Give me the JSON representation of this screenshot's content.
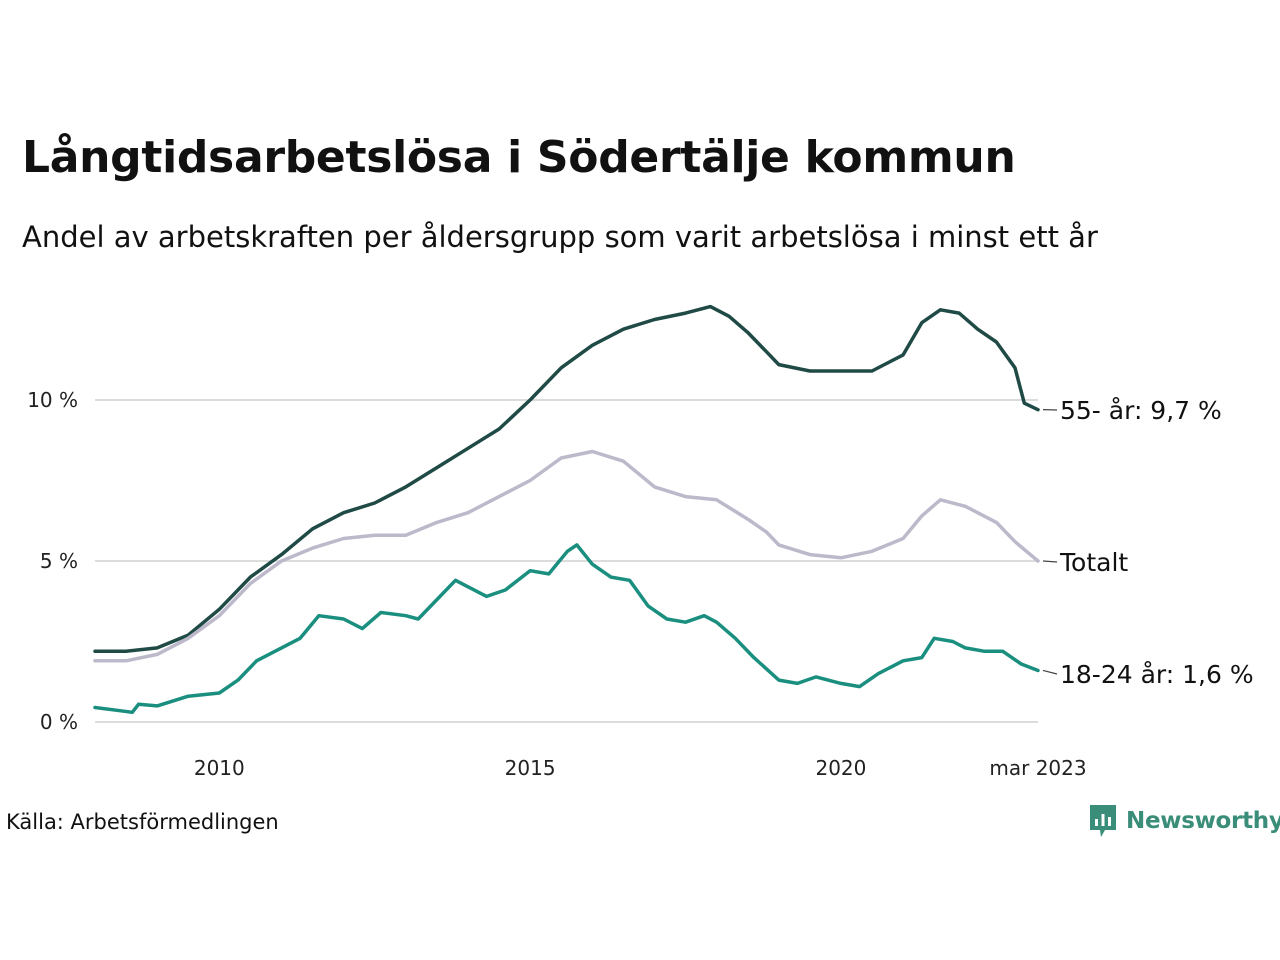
{
  "title": "Långtidsarbetslösa i Södertälje kommun",
  "subtitle": "Andel av arbetskraften per åldersgrupp som varit arbetslösa i minst ett år",
  "source": "Källa: Arbetsförmedlingen",
  "brand": {
    "name": "Newsworthy",
    "icon": "newsworthy-chart-bubble-icon",
    "color": "#3a8d78"
  },
  "chart_data": {
    "type": "line",
    "x_start": "2008-01",
    "x_end": "2023-03",
    "x_ticks": [
      {
        "x": 2010.0,
        "label": "2010"
      },
      {
        "x": 2015.0,
        "label": "2015"
      },
      {
        "x": 2020.0,
        "label": "2020"
      },
      {
        "x": 2023.17,
        "label": "mar 2023"
      }
    ],
    "y_ticks": [
      {
        "y": 0,
        "label": "0 %"
      },
      {
        "y": 5,
        "label": "5 %"
      },
      {
        "y": 10,
        "label": "10 %"
      }
    ],
    "ylim": [
      0,
      13
    ],
    "grid": "horizontal",
    "series": [
      {
        "name": "55-",
        "end_label": "55- år: 9,7 %",
        "color": "#1f4a45",
        "values": [
          [
            2008.0,
            2.2
          ],
          [
            2008.5,
            2.2
          ],
          [
            2009.0,
            2.3
          ],
          [
            2009.5,
            2.7
          ],
          [
            2010.0,
            3.5
          ],
          [
            2010.5,
            4.5
          ],
          [
            2011.0,
            5.2
          ],
          [
            2011.5,
            6.0
          ],
          [
            2012.0,
            6.5
          ],
          [
            2012.5,
            6.8
          ],
          [
            2013.0,
            7.3
          ],
          [
            2013.5,
            7.9
          ],
          [
            2014.0,
            8.5
          ],
          [
            2014.5,
            9.1
          ],
          [
            2015.0,
            10.0
          ],
          [
            2015.5,
            11.0
          ],
          [
            2016.0,
            11.7
          ],
          [
            2016.5,
            12.2
          ],
          [
            2017.0,
            12.5
          ],
          [
            2017.5,
            12.7
          ],
          [
            2017.9,
            12.9
          ],
          [
            2018.2,
            12.6
          ],
          [
            2018.5,
            12.1
          ],
          [
            2018.8,
            11.5
          ],
          [
            2019.0,
            11.1
          ],
          [
            2019.5,
            10.9
          ],
          [
            2020.0,
            10.9
          ],
          [
            2020.5,
            10.9
          ],
          [
            2021.0,
            11.4
          ],
          [
            2021.3,
            12.4
          ],
          [
            2021.6,
            12.8
          ],
          [
            2021.9,
            12.7
          ],
          [
            2022.2,
            12.2
          ],
          [
            2022.5,
            11.8
          ],
          [
            2022.8,
            11.0
          ],
          [
            2022.95,
            9.9
          ],
          [
            2023.17,
            9.7
          ]
        ]
      },
      {
        "name": "Totalt",
        "end_label": "Totalt",
        "color": "#bdb9cb",
        "values": [
          [
            2008.0,
            1.9
          ],
          [
            2008.5,
            1.9
          ],
          [
            2009.0,
            2.1
          ],
          [
            2009.5,
            2.6
          ],
          [
            2010.0,
            3.3
          ],
          [
            2010.5,
            4.3
          ],
          [
            2011.0,
            5.0
          ],
          [
            2011.5,
            5.4
          ],
          [
            2012.0,
            5.7
          ],
          [
            2012.5,
            5.8
          ],
          [
            2013.0,
            5.8
          ],
          [
            2013.5,
            6.2
          ],
          [
            2014.0,
            6.5
          ],
          [
            2014.5,
            7.0
          ],
          [
            2015.0,
            7.5
          ],
          [
            2015.5,
            8.2
          ],
          [
            2016.0,
            8.4
          ],
          [
            2016.5,
            8.1
          ],
          [
            2017.0,
            7.3
          ],
          [
            2017.5,
            7.0
          ],
          [
            2018.0,
            6.9
          ],
          [
            2018.5,
            6.3
          ],
          [
            2018.8,
            5.9
          ],
          [
            2019.0,
            5.5
          ],
          [
            2019.5,
            5.2
          ],
          [
            2020.0,
            5.1
          ],
          [
            2020.5,
            5.3
          ],
          [
            2021.0,
            5.7
          ],
          [
            2021.3,
            6.4
          ],
          [
            2021.6,
            6.9
          ],
          [
            2022.0,
            6.7
          ],
          [
            2022.5,
            6.2
          ],
          [
            2022.8,
            5.6
          ],
          [
            2023.17,
            5.0
          ]
        ]
      },
      {
        "name": "18-24",
        "end_label": "18-24 år: 1,6 %",
        "color": "#1a8f7f",
        "values": [
          [
            2008.0,
            0.45
          ],
          [
            2008.4,
            0.35
          ],
          [
            2008.6,
            0.3
          ],
          [
            2008.7,
            0.55
          ],
          [
            2009.0,
            0.5
          ],
          [
            2009.5,
            0.8
          ],
          [
            2010.0,
            0.9
          ],
          [
            2010.3,
            1.3
          ],
          [
            2010.6,
            1.9
          ],
          [
            2011.0,
            2.3
          ],
          [
            2011.3,
            2.6
          ],
          [
            2011.6,
            3.3
          ],
          [
            2012.0,
            3.2
          ],
          [
            2012.3,
            2.9
          ],
          [
            2012.6,
            3.4
          ],
          [
            2013.0,
            3.3
          ],
          [
            2013.2,
            3.2
          ],
          [
            2013.5,
            3.8
          ],
          [
            2013.8,
            4.4
          ],
          [
            2014.0,
            4.2
          ],
          [
            2014.3,
            3.9
          ],
          [
            2014.6,
            4.1
          ],
          [
            2015.0,
            4.7
          ],
          [
            2015.3,
            4.6
          ],
          [
            2015.6,
            5.3
          ],
          [
            2015.75,
            5.5
          ],
          [
            2016.0,
            4.9
          ],
          [
            2016.3,
            4.5
          ],
          [
            2016.6,
            4.4
          ],
          [
            2016.9,
            3.6
          ],
          [
            2017.2,
            3.2
          ],
          [
            2017.5,
            3.1
          ],
          [
            2017.8,
            3.3
          ],
          [
            2018.0,
            3.1
          ],
          [
            2018.3,
            2.6
          ],
          [
            2018.6,
            2.0
          ],
          [
            2019.0,
            1.3
          ],
          [
            2019.3,
            1.2
          ],
          [
            2019.6,
            1.4
          ],
          [
            2020.0,
            1.2
          ],
          [
            2020.3,
            1.1
          ],
          [
            2020.6,
            1.5
          ],
          [
            2021.0,
            1.9
          ],
          [
            2021.3,
            2.0
          ],
          [
            2021.5,
            2.6
          ],
          [
            2021.8,
            2.5
          ],
          [
            2022.0,
            2.3
          ],
          [
            2022.3,
            2.2
          ],
          [
            2022.6,
            2.2
          ],
          [
            2022.9,
            1.8
          ],
          [
            2023.17,
            1.6
          ]
        ]
      }
    ]
  }
}
